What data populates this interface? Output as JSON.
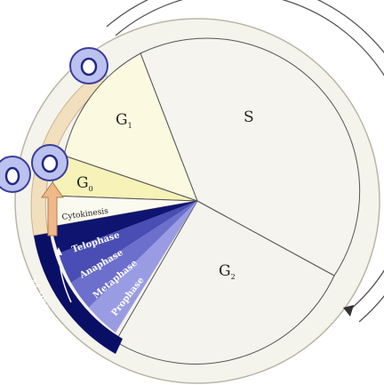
{
  "diagram": {
    "phases": {
      "g1": {
        "label": "G",
        "sub": "1"
      },
      "s": {
        "label": "S"
      },
      "g2": {
        "label": "G",
        "sub": "2"
      },
      "g0": {
        "label": "G",
        "sub": "0"
      },
      "cytokinesis": {
        "label": "Cytokinesis"
      },
      "telophase": {
        "label": "Telophase"
      },
      "anaphase": {
        "label": "Anaphase"
      },
      "metaphase": {
        "label": "Metaphase"
      },
      "prophase": {
        "label": "Prophase"
      }
    },
    "m_phase_label": "M Phase",
    "colors": {
      "background": "#f4f3ec",
      "g1_fill": "#fbf9df",
      "s_fill": "#f5f4ee",
      "g2_fill": "#f4f3ed",
      "g0_fill": "#f6f2b8",
      "cytokinesis_fill": "#fbfaf0",
      "telophase_fill": "#0f1470",
      "anaphase_fill": "#4a4db3",
      "metaphase_fill": "#6c6fcc",
      "prophase_fill": "#9a9ce3",
      "m_band": "#0a0f66",
      "outer_band": "#f2dfbe",
      "arrow_fill": "#f0b98a",
      "cell_fill": "#bcc2ef",
      "cell_stroke": "#3a3f9a",
      "line": "#555555"
    }
  }
}
